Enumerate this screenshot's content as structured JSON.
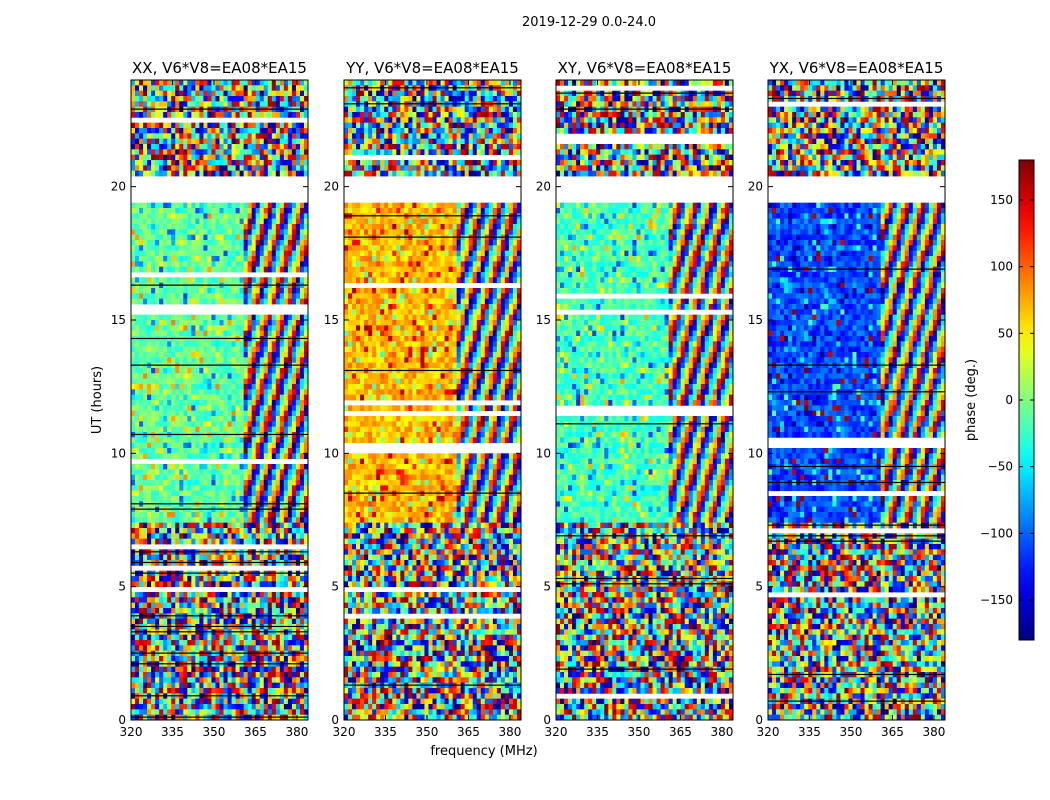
{
  "chart_data": {
    "type": "heatmap",
    "suptitle": "2019-12-29 0.0-24.0",
    "xlabel": "frequency (MHz)",
    "ylabel": "UT (hours)",
    "xlim": [
      320,
      384
    ],
    "ylim": [
      0,
      24
    ],
    "xticks": [
      320,
      335,
      350,
      365,
      380
    ],
    "yticks": [
      0,
      5,
      10,
      15,
      20
    ],
    "colormap": "jet",
    "colorbar": {
      "label": "phase (deg.)",
      "range": [
        -180,
        180
      ],
      "ticks": [
        150,
        100,
        50,
        0,
        -50,
        -100,
        -150
      ],
      "tick_labels": [
        "150",
        "100",
        "50",
        "0",
        "−50",
        "−100",
        "−150"
      ]
    },
    "blank_time_ranges": [
      [
        19.4,
        20.4
      ]
    ],
    "panels": [
      {
        "title": "XX, V6*V8=EA08*EA15",
        "base_phase": -10,
        "band_change_mhz": 361
      },
      {
        "title": "YY, V6*V8=EA08*EA15",
        "base_phase": 70,
        "band_change_mhz": 361
      },
      {
        "title": "XY, V6*V8=EA08*EA15",
        "base_phase": -20,
        "band_change_mhz": 361
      },
      {
        "title": "YX, V6*V8=EA08*EA15",
        "base_phase": -110,
        "band_change_mhz": 361
      }
    ]
  }
}
